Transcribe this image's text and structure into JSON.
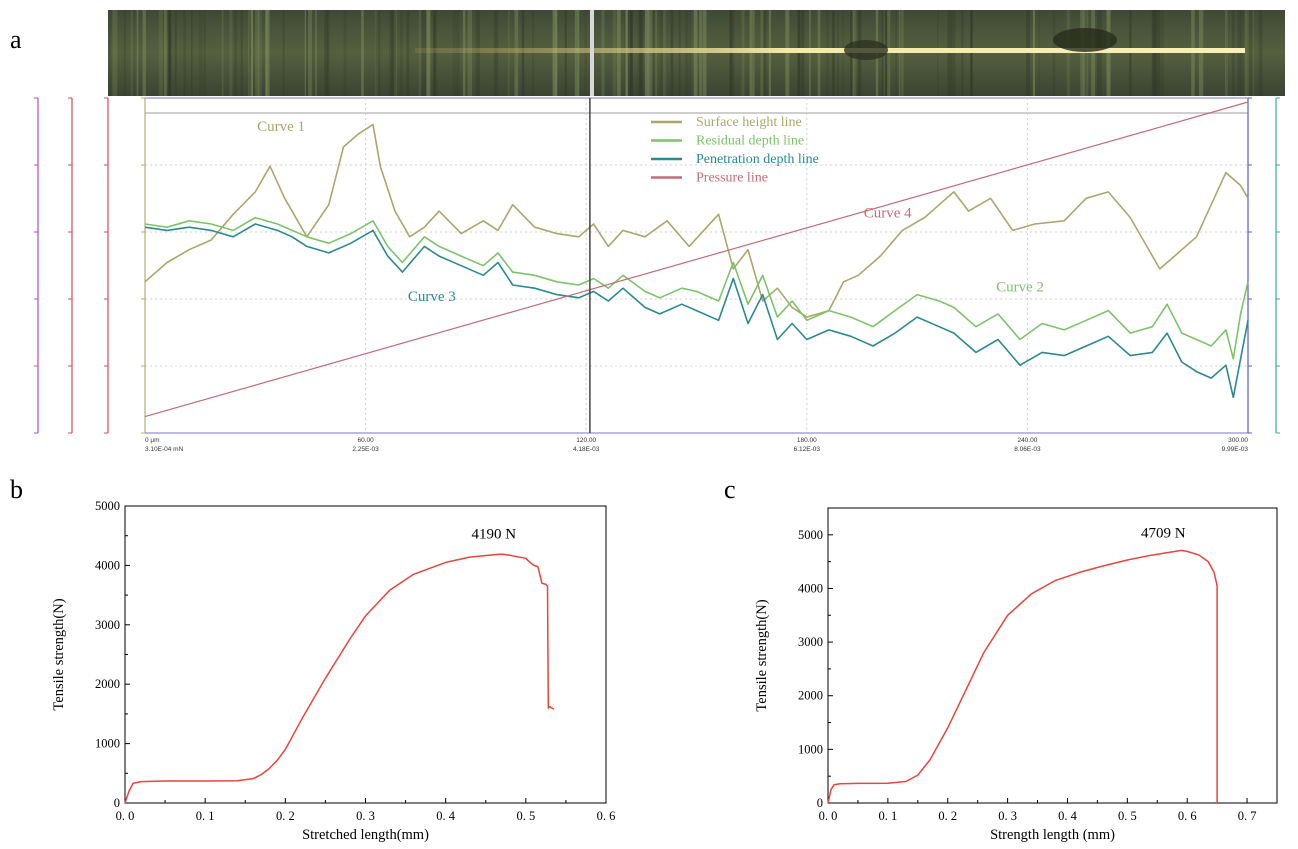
{
  "panel_labels": {
    "a": "a",
    "b": "b",
    "c": "c"
  },
  "chart_data": [
    {
      "panel": "a",
      "type": "line",
      "title": "",
      "xlabel": "",
      "ylabel": "",
      "grid": true,
      "legend_position": "top-center",
      "x_tick_labels": [
        "0 μm",
        "60.00",
        "120.00",
        "180.00",
        "240.00",
        "300.00"
      ],
      "x_tick_labels_secondary": [
        "3.10E-04 mN",
        "2.25E-03",
        "4.18E-03",
        "6.12E-03",
        "8.06E-03",
        "9.99E-03"
      ],
      "xlim": [
        0,
        300
      ],
      "ylim": [
        0,
        100
      ],
      "cursor_x": 121,
      "annotations": [
        {
          "text": "Curve 1",
          "x": 37,
          "y": 91,
          "color": "#a8a86a"
        },
        {
          "text": "Curve 2",
          "x": 238,
          "y": 41,
          "color": "#7cc46a"
        },
        {
          "text": "Curve 3",
          "x": 78,
          "y": 38,
          "color": "#2a8a90"
        },
        {
          "text": "Curve 4",
          "x": 202,
          "y": 64,
          "color": "#c36b7a"
        }
      ],
      "series": [
        {
          "name": "Surface height line",
          "color": "#a8a86a",
          "x": [
            0,
            6,
            12,
            18,
            24,
            30,
            34,
            38,
            44,
            50,
            54,
            58,
            62,
            64,
            68,
            72,
            76,
            80,
            86,
            92,
            96,
            100,
            106,
            112,
            118,
            122,
            126,
            130,
            136,
            142,
            148,
            156,
            160,
            164,
            168,
            172,
            176,
            180,
            186,
            190,
            194,
            200,
            206,
            212,
            216,
            220,
            224,
            230,
            236,
            242,
            250,
            256,
            262,
            268,
            276,
            280,
            286,
            290,
            294,
            298,
            300
          ],
          "y": [
            44,
            50,
            54,
            57,
            65,
            72,
            80,
            70,
            58,
            68,
            86,
            90,
            93,
            80,
            66,
            58,
            61,
            66,
            59,
            63,
            60,
            68,
            61,
            59,
            58,
            62,
            55,
            60,
            58,
            63,
            55,
            65,
            48,
            54,
            38,
            42,
            36,
            33,
            35,
            44,
            46,
            52,
            60,
            64,
            68,
            72,
            66,
            70,
            60,
            62,
            63,
            70,
            72,
            64,
            48,
            52,
            58,
            68,
            78,
            74,
            70
          ]
        },
        {
          "name": "Residual depth line",
          "color": "#7cc46a",
          "x": [
            0,
            6,
            12,
            18,
            24,
            30,
            36,
            40,
            44,
            50,
            56,
            62,
            66,
            70,
            76,
            80,
            86,
            92,
            96,
            100,
            106,
            112,
            118,
            122,
            126,
            130,
            136,
            140,
            146,
            150,
            156,
            160,
            164,
            168,
            172,
            176,
            180,
            186,
            192,
            198,
            204,
            210,
            216,
            220,
            226,
            232,
            238,
            244,
            250,
            256,
            262,
            268,
            274,
            278,
            282,
            286,
            290,
            294,
            296,
            298,
            300
          ],
          "y": [
            62,
            61,
            63,
            62,
            60,
            64,
            62,
            60,
            58,
            56,
            59,
            63,
            55,
            50,
            58,
            55,
            52,
            49,
            53,
            47,
            46,
            44,
            43,
            45,
            42,
            46,
            41,
            39,
            42,
            41,
            38,
            50,
            37,
            46,
            33,
            38,
            32,
            35,
            33,
            30,
            35,
            40,
            38,
            36,
            30,
            34,
            26,
            31,
            29,
            32,
            35,
            28,
            30,
            37,
            28,
            26,
            24,
            29,
            20,
            34,
            44
          ]
        },
        {
          "name": "Penetration depth line",
          "color": "#2a8a90",
          "x": [
            0,
            6,
            12,
            18,
            24,
            30,
            36,
            40,
            44,
            50,
            56,
            62,
            66,
            70,
            76,
            80,
            86,
            92,
            96,
            100,
            106,
            112,
            118,
            122,
            126,
            130,
            136,
            140,
            146,
            150,
            156,
            160,
            164,
            168,
            172,
            176,
            180,
            186,
            192,
            198,
            204,
            210,
            216,
            220,
            226,
            232,
            238,
            244,
            250,
            256,
            262,
            268,
            274,
            278,
            282,
            286,
            290,
            294,
            296,
            298,
            300
          ],
          "y": [
            61,
            60,
            61,
            60,
            58,
            62,
            60,
            58,
            55,
            53,
            56,
            60,
            52,
            47,
            55,
            52,
            49,
            46,
            50,
            43,
            42,
            40,
            39,
            41,
            38,
            42,
            36,
            34,
            37,
            35,
            32,
            45,
            31,
            40,
            26,
            31,
            26,
            29,
            27,
            24,
            28,
            33,
            30,
            28,
            22,
            26,
            18,
            22,
            21,
            24,
            27,
            21,
            22,
            28,
            19,
            16,
            14,
            18,
            8,
            20,
            32
          ]
        },
        {
          "name": "Pressure line",
          "color": "#c36b7a",
          "x": [
            0,
            300
          ],
          "y": [
            2,
            100
          ]
        }
      ]
    },
    {
      "panel": "b",
      "type": "line",
      "title": "",
      "xlabel": "Stretched length(mm)",
      "ylabel": "Tensile strength(N)",
      "xlim": [
        0,
        0.6
      ],
      "ylim": [
        0,
        5000
      ],
      "x_tick_labels": [
        "0. 0",
        "0. 1",
        "0. 2",
        "0. 3",
        "0. 4",
        "0. 5",
        "0. 6"
      ],
      "y_tick_labels": [
        "0",
        "1000",
        "2000",
        "3000",
        "4000",
        "5000"
      ],
      "annotations": [
        {
          "text": "4190 N",
          "x": 0.46,
          "y": 4450
        }
      ],
      "series": [
        {
          "name": "",
          "color": "#e8453c",
          "x": [
            0,
            0.005,
            0.01,
            0.02,
            0.05,
            0.1,
            0.14,
            0.16,
            0.17,
            0.18,
            0.19,
            0.2,
            0.22,
            0.25,
            0.28,
            0.3,
            0.33,
            0.36,
            0.4,
            0.43,
            0.46,
            0.47,
            0.48,
            0.5,
            0.505,
            0.51,
            0.515,
            0.52,
            0.525,
            0.527,
            0.528,
            0.53,
            0.535
          ],
          "y": [
            0,
            200,
            330,
            360,
            370,
            370,
            375,
            410,
            480,
            580,
            720,
            900,
            1400,
            2100,
            2750,
            3150,
            3580,
            3850,
            4050,
            4140,
            4180,
            4190,
            4170,
            4120,
            4050,
            4000,
            3980,
            3700,
            3680,
            3650,
            1600,
            1620,
            1580
          ]
        }
      ]
    },
    {
      "panel": "c",
      "type": "line",
      "title": "",
      "xlabel": "Strength length (mm)",
      "ylabel": "Tensile strength(N)",
      "xlim": [
        0,
        0.75
      ],
      "ylim": [
        0,
        5500
      ],
      "x_tick_labels": [
        "0. 0",
        "0. 1",
        "0. 2",
        "0. 3",
        "0. 4",
        "0. 5",
        "0. 6",
        "0. 7"
      ],
      "y_tick_labels": [
        "0",
        "1000",
        "2000",
        "3000",
        "4000",
        "5000"
      ],
      "annotations": [
        {
          "text": "4709 N",
          "x": 0.56,
          "y": 4950
        }
      ],
      "series": [
        {
          "name": "",
          "color": "#e8453c",
          "x": [
            0,
            0.005,
            0.01,
            0.02,
            0.05,
            0.1,
            0.13,
            0.15,
            0.17,
            0.2,
            0.23,
            0.26,
            0.3,
            0.34,
            0.38,
            0.42,
            0.46,
            0.5,
            0.54,
            0.58,
            0.59,
            0.6,
            0.62,
            0.635,
            0.645,
            0.648,
            0.65,
            0.65
          ],
          "y": [
            0,
            250,
            340,
            360,
            365,
            370,
            400,
            520,
            800,
            1400,
            2100,
            2800,
            3500,
            3900,
            4150,
            4300,
            4420,
            4530,
            4620,
            4690,
            4709,
            4690,
            4620,
            4500,
            4300,
            4150,
            4050,
            0
          ]
        }
      ]
    }
  ]
}
